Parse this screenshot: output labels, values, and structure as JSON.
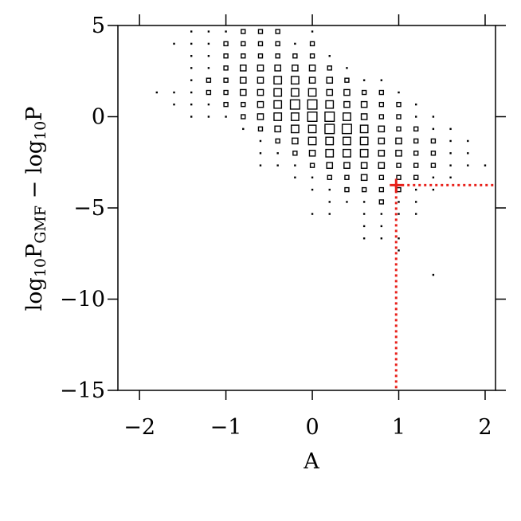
{
  "chart_data": {
    "type": "scatter",
    "xlabel": "A",
    "ylabel": [
      "log",
      "10",
      "P",
      "GMF",
      " − log",
      "10",
      "P"
    ],
    "xlim": [
      -2.25,
      2.12
    ],
    "ylim": [
      -15,
      5
    ],
    "xticks": [
      {
        "value": -2,
        "label": "−2"
      },
      {
        "value": -1,
        "label": "−1"
      },
      0,
      1,
      2
    ],
    "yticks": [
      5,
      0,
      {
        "value": -5,
        "label": "−5"
      },
      {
        "value": -10,
        "label": "−10"
      },
      {
        "value": -15,
        "label": "−15"
      }
    ],
    "color": "#000000",
    "rows": [
      {
        "y": 4.67,
        "x": [
          -1.4,
          -1.2,
          -1.0,
          -0.8,
          -0.6,
          -0.4,
          0
        ],
        "size": [
          1,
          1,
          1,
          2,
          2,
          2,
          1
        ]
      },
      {
        "y": 4.0,
        "x": [
          -1.6,
          -1.4,
          -1.2,
          -1.0,
          -0.8,
          -0.6,
          -0.4,
          -0.2,
          0
        ],
        "size": [
          1,
          1,
          1,
          2,
          2,
          2,
          2,
          1,
          2
        ]
      },
      {
        "y": 3.33,
        "x": [
          -1.4,
          -1.2,
          -1.0,
          -0.8,
          -0.6,
          -0.4,
          -0.2,
          0,
          0.2
        ],
        "size": [
          1,
          1,
          2,
          2,
          2,
          2,
          2,
          2,
          1
        ]
      },
      {
        "y": 2.67,
        "x": [
          -1.4,
          -1.2,
          -1.0,
          -0.8,
          -0.6,
          -0.4,
          -0.2,
          0,
          0.2,
          0.4
        ],
        "size": [
          1,
          1,
          2,
          3,
          3,
          3,
          3,
          3,
          2,
          1
        ]
      },
      {
        "y": 2.0,
        "x": [
          -1.4,
          -1.2,
          -1.0,
          -0.8,
          -0.6,
          -0.4,
          -0.2,
          0,
          0.2,
          0.4,
          0.6,
          0.8
        ],
        "size": [
          1,
          2,
          2,
          3,
          3,
          4,
          4,
          3,
          3,
          2,
          1,
          1
        ]
      },
      {
        "y": 1.33,
        "x": [
          -1.8,
          -1.6,
          -1.4,
          -1.2,
          -1.0,
          -0.8,
          -0.6,
          -0.4,
          -0.2,
          0,
          0.2,
          0.4,
          0.6,
          0.8,
          1.0
        ],
        "size": [
          1,
          1,
          1,
          2,
          2,
          3,
          3,
          4,
          4,
          4,
          3,
          3,
          2,
          2,
          1
        ]
      },
      {
        "y": 0.67,
        "x": [
          -1.6,
          -1.4,
          -1.2,
          -1.0,
          -0.8,
          -0.6,
          -0.4,
          -0.2,
          0,
          0.2,
          0.4,
          0.6,
          0.8,
          1.0,
          1.2
        ],
        "size": [
          1,
          1,
          1,
          2,
          2,
          3,
          4,
          5,
          5,
          4,
          3,
          3,
          2,
          2,
          1
        ]
      },
      {
        "y": 0,
        "x": [
          -1.4,
          -1.2,
          -1.0,
          -0.8,
          -0.6,
          -0.4,
          -0.2,
          0,
          0.2,
          0.4,
          0.6,
          0.8,
          1.0,
          1.2,
          1.4
        ],
        "size": [
          1,
          1,
          1,
          2,
          3,
          4,
          4,
          5,
          5,
          4,
          3,
          2,
          2,
          1,
          1
        ]
      },
      {
        "y": -0.67,
        "x": [
          -0.8,
          -0.6,
          -0.4,
          -0.2,
          0,
          0.2,
          0.4,
          0.6,
          0.8,
          1.0,
          1.2,
          1.4,
          1.6
        ],
        "size": [
          1,
          2,
          3,
          4,
          4,
          5,
          5,
          4,
          3,
          2,
          2,
          1,
          1
        ]
      },
      {
        "y": -1.33,
        "x": [
          -0.6,
          -0.4,
          -0.2,
          0,
          0.2,
          0.4,
          0.6,
          0.8,
          1.0,
          1.2,
          1.4,
          1.6,
          1.8
        ],
        "size": [
          1,
          2,
          3,
          4,
          4,
          4,
          4,
          3,
          3,
          2,
          2,
          1,
          1
        ]
      },
      {
        "y": -2.0,
        "x": [
          -0.6,
          -0.4,
          -0.2,
          0,
          0.2,
          0.4,
          0.6,
          0.8,
          1.0,
          1.2,
          1.4,
          1.6,
          1.8
        ],
        "size": [
          1,
          1,
          2,
          3,
          4,
          4,
          4,
          3,
          3,
          2,
          2,
          1,
          1
        ]
      },
      {
        "y": -2.67,
        "x": [
          -0.6,
          -0.4,
          -0.2,
          0,
          0.2,
          0.4,
          0.6,
          0.8,
          1.0,
          1.2,
          1.4,
          1.6,
          1.8,
          2.0
        ],
        "size": [
          1,
          1,
          1,
          2,
          3,
          3,
          3,
          3,
          2,
          2,
          2,
          1,
          1,
          1
        ]
      },
      {
        "y": -3.33,
        "x": [
          -0.2,
          0,
          0.2,
          0.4,
          0.6,
          0.8,
          1.0,
          1.2,
          1.4,
          1.6
        ],
        "size": [
          1,
          1,
          2,
          2,
          3,
          2,
          2,
          2,
          1,
          1
        ]
      },
      {
        "y": -4.0,
        "x": [
          0,
          0.2,
          0.4,
          0.6,
          0.8,
          1.0,
          1.2,
          1.4
        ],
        "size": [
          1,
          1,
          2,
          2,
          2,
          2,
          1,
          1
        ]
      },
      {
        "y": -4.67,
        "x": [
          0.2,
          0.4,
          0.6,
          0.8,
          1.0,
          1.2
        ],
        "size": [
          1,
          1,
          1,
          2,
          1,
          1
        ]
      },
      {
        "y": -5.33,
        "x": [
          0,
          0.2,
          0.6,
          0.8,
          1.0,
          1.2
        ],
        "size": [
          1,
          1,
          1,
          1,
          1,
          1
        ]
      },
      {
        "y": -6.0,
        "x": [
          0.6,
          0.8
        ],
        "size": [
          1,
          1
        ]
      },
      {
        "y": -6.67,
        "x": [
          0.6,
          0.8,
          1.0
        ],
        "size": [
          1,
          1,
          1
        ]
      },
      {
        "y": -7.33,
        "x": [
          1.0
        ],
        "size": [
          1
        ]
      },
      {
        "y": -8.67,
        "x": [
          1.4
        ],
        "size": [
          1
        ]
      }
    ],
    "reference_point": {
      "x": 0.97,
      "y": -3.75,
      "color": "#e8201a"
    }
  }
}
